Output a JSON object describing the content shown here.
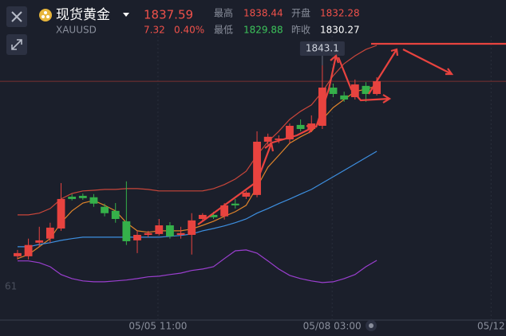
{
  "header": {
    "name": "现货黄金",
    "symbol": "XAUUSD",
    "price": 1837.59,
    "change": 7.32,
    "change_pct": "0.40%",
    "high_label": "最高",
    "high": 1838.44,
    "open_label": "开盘",
    "open": 1832.28,
    "low_label": "最低",
    "low": 1829.88,
    "prev_close_label": "昨收",
    "prev_close": 1830.27
  },
  "chart_data": {
    "type": "candlestick",
    "up_color": "#e8433f",
    "down_color": "#35b04a",
    "xlim": [
      -1.61,
      44.87
    ],
    "ylim": [
      1755.6,
      1853.3
    ],
    "xticks": [
      {
        "value": 12.9,
        "label": "05/05 11:00"
      },
      {
        "value": 28.9,
        "label": "05/08 03:00"
      },
      {
        "value": 43.5,
        "label": "05/12"
      }
    ],
    "open": [
      1777.1,
      1777.1,
      1781.8,
      1783.2,
      1786.7,
      1797.7,
      1798.0,
      1797.5,
      1794.2,
      1792.8,
      1789.2,
      1782.6,
      1784.5,
      1784.8,
      1787.8,
      1784.5,
      1784.5,
      1790.0,
      1791.4,
      1790.9,
      1795.3,
      1797.7,
      1798.3,
      1816.7,
      1817.3,
      1817.5,
      1822.5,
      1821.1,
      1822.2,
      1835.4,
      1832.7,
      1832.1,
      1836.0,
      1833.2
    ],
    "high": [
      1779.3,
      1783.2,
      1787.3,
      1788.7,
      1802.4,
      1798.6,
      1798.8,
      1798.6,
      1795.3,
      1795.5,
      1803.0,
      1785.9,
      1785.9,
      1790.0,
      1788.9,
      1787.3,
      1792.0,
      1792.0,
      1792.5,
      1795.5,
      1796.9,
      1799.7,
      1820.3,
      1819.5,
      1818.9,
      1823.0,
      1824.4,
      1825.8,
      1843.1,
      1836.8,
      1834.0,
      1838.2,
      1837.3,
      1839.0
    ],
    "low": [
      1776.0,
      1776.0,
      1780.4,
      1781.8,
      1785.9,
      1796.4,
      1796.6,
      1794.2,
      1790.9,
      1788.7,
      1781.0,
      1778.2,
      1783.7,
      1784.3,
      1783.2,
      1783.2,
      1777.7,
      1789.2,
      1790.0,
      1789.8,
      1793.6,
      1796.9,
      1797.5,
      1815.6,
      1816.2,
      1816.2,
      1820.3,
      1820.0,
      1821.1,
      1832.1,
      1830.5,
      1831.3,
      1830.5,
      1832.7
    ],
    "close": [
      1778.2,
      1781.0,
      1782.6,
      1787.0,
      1796.9,
      1796.9,
      1797.2,
      1795.3,
      1792.0,
      1790.0,
      1782.3,
      1784.5,
      1785.1,
      1787.8,
      1784.0,
      1785.1,
      1789.5,
      1791.4,
      1790.6,
      1794.7,
      1794.7,
      1799.1,
      1816.7,
      1818.4,
      1817.8,
      1822.2,
      1821.1,
      1823.0,
      1835.4,
      1833.2,
      1831.3,
      1836.5,
      1833.2,
      1837.6
    ],
    "lines": [
      {
        "color": "#e0842a",
        "values": [
          1776.3,
          1777.7,
          1780.4,
          1783.2,
          1788.7,
          1792.8,
          1795.5,
          1796.4,
          1794.7,
          1792.8,
          1788.7,
          1785.9,
          1785.4,
          1785.9,
          1785.9,
          1785.9,
          1786.5,
          1787.8,
          1789.2,
          1790.9,
          1792.5,
          1794.7,
          1801.0,
          1807.9,
          1812.0,
          1816.2,
          1818.4,
          1820.3,
          1824.4,
          1828.5,
          1831.3,
          1834.0,
          1834.9,
          1836.0
        ]
      },
      {
        "color": "#c9463a",
        "values": [
          1791.4,
          1791.4,
          1792.0,
          1793.6,
          1796.9,
          1798.8,
          1799.7,
          1799.9,
          1800.2,
          1800.2,
          1800.5,
          1800.5,
          1800.2,
          1799.7,
          1799.7,
          1799.7,
          1799.7,
          1799.7,
          1800.5,
          1801.9,
          1803.8,
          1806.5,
          1812.0,
          1816.7,
          1820.3,
          1824.4,
          1827.2,
          1829.4,
          1834.0,
          1839.5,
          1843.7,
          1846.4,
          1848.6,
          1850.0
        ]
      },
      {
        "color": "#3d8fe0",
        "values": [
          1780.4,
          1780.4,
          1781.2,
          1781.8,
          1782.6,
          1783.2,
          1783.7,
          1783.7,
          1783.7,
          1783.7,
          1783.7,
          1783.7,
          1783.7,
          1783.7,
          1784.0,
          1784.3,
          1784.8,
          1785.9,
          1786.7,
          1787.6,
          1788.7,
          1790.0,
          1792.0,
          1793.6,
          1795.3,
          1796.9,
          1798.6,
          1800.2,
          1802.4,
          1804.6,
          1806.8,
          1809.0,
          1811.2,
          1813.4
        ]
      },
      {
        "color": "#9b3fd0",
        "values": [
          1775.5,
          1775.5,
          1774.9,
          1773.5,
          1770.8,
          1769.4,
          1768.6,
          1768.3,
          1768.3,
          1768.6,
          1768.9,
          1769.4,
          1770.0,
          1770.2,
          1770.8,
          1771.3,
          1772.2,
          1772.7,
          1773.5,
          1776.3,
          1779.0,
          1779.3,
          1778.2,
          1775.5,
          1772.7,
          1770.5,
          1769.4,
          1768.6,
          1768.0,
          1768.3,
          1769.4,
          1770.8,
          1773.5,
          1775.7
        ]
      }
    ],
    "max_label": 1843.1,
    "max_index": 28,
    "y_label_fragment": "61"
  }
}
